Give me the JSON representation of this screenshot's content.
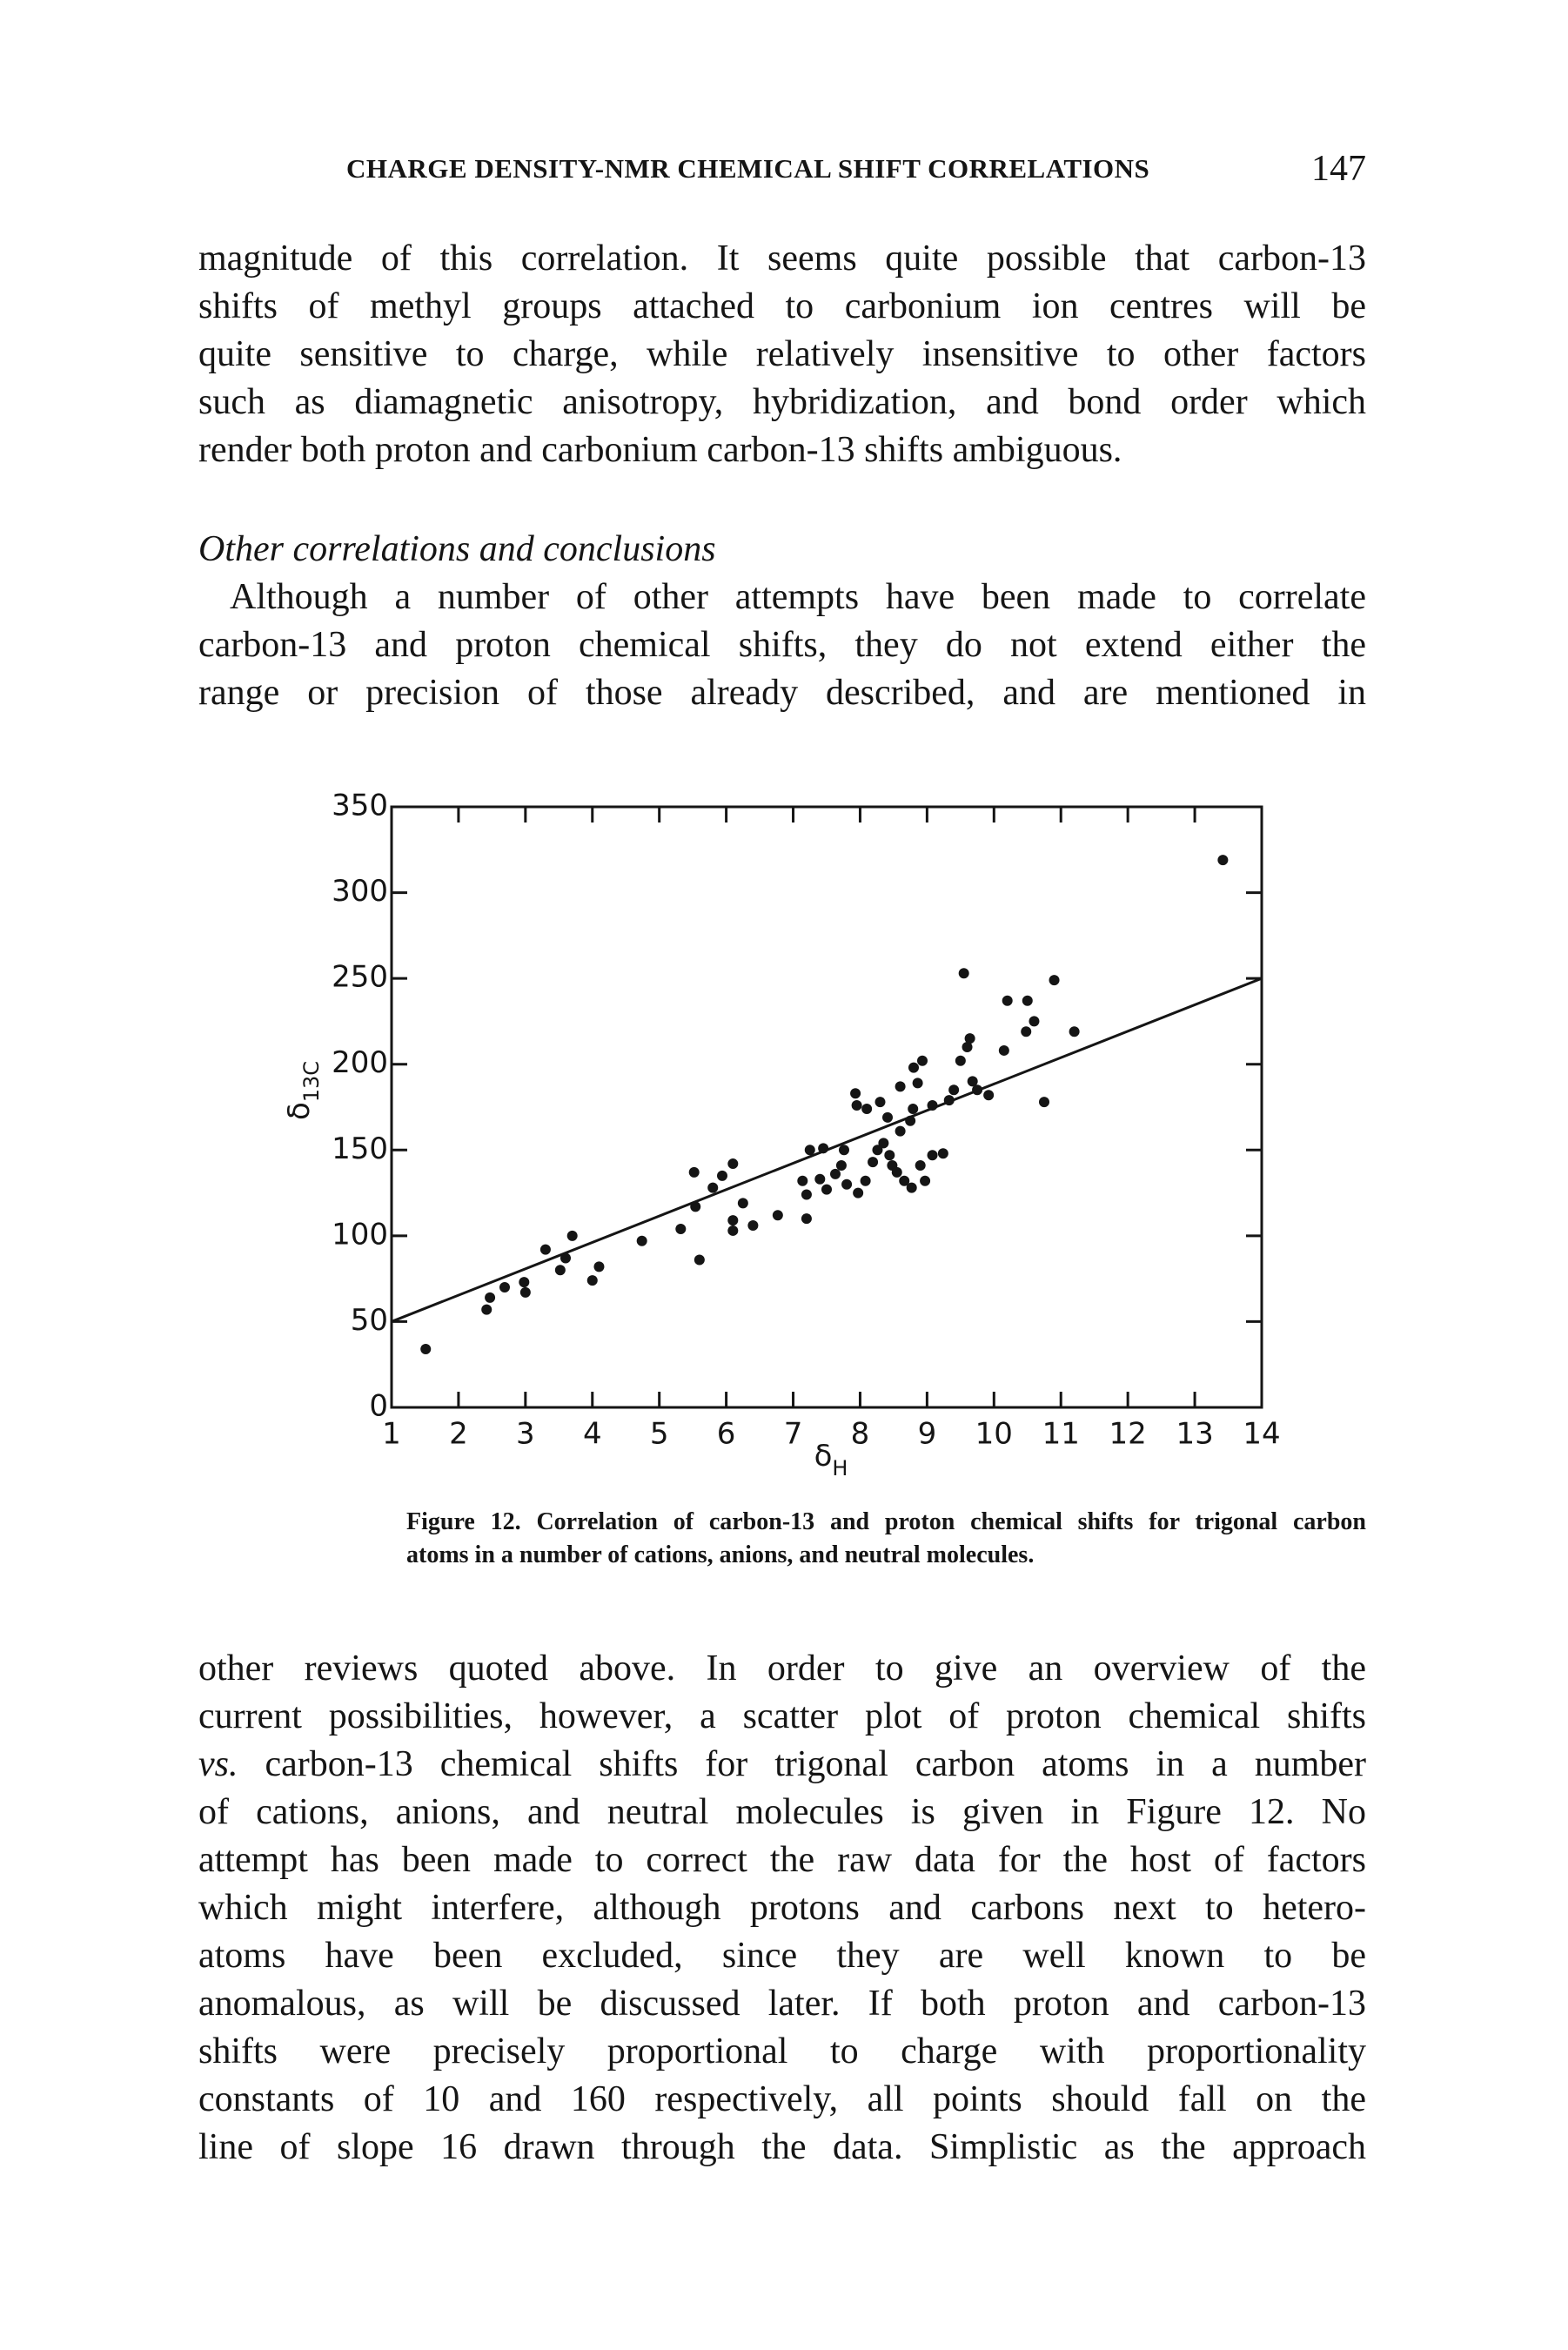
{
  "header": {
    "title": "CHARGE DENSITY-NMR CHEMICAL SHIFT CORRELATIONS",
    "page_number": 147
  },
  "paragraphs": [
    {
      "lines": [
        "magnitude of this correlation. It seems quite possible that carbon-13",
        "shifts of methyl groups attached to carbonium ion centres will be",
        "quite sensitive to charge, while relatively insensitive to other factors",
        "such as diamagnetic anisotropy, hybridization, and bond order which",
        "render both proton and carbonium carbon-13 shifts ambiguous."
      ]
    },
    {
      "heading": "Other correlations and conclusions",
      "lines": [
        "Although a number of other attempts have been made to correlate",
        "carbon-13 and proton chemical shifts, they do not extend either the",
        "range or precision of those already described, and are mentioned in"
      ]
    },
    {
      "lines": [
        "other reviews quoted above. In order to give an overview of the",
        "current possibilities, however, a scatter plot of proton chemical shifts",
        {
          "italic": "vs.",
          "text": "carbon-13 chemical shifts for trigonal carbon atoms in a number"
        },
        "of cations, anions, and neutral molecules is given in Figure 12. No",
        "attempt has been made to correct the raw data for the host of factors",
        "which might interfere, although protons and carbons next to hetero-",
        "atoms have been excluded, since they are well known to be",
        "anomalous, as will be discussed later. If both proton and carbon-13",
        "shifts were precisely proportional to charge with proportionality",
        "constants of 10 and 160 respectively, all points should fall on the",
        "line of slope 16 drawn through the data. Simplistic as the approach"
      ]
    }
  ],
  "chart_data": {
    "type": "scatter",
    "xlabel": {
      "symbol": "δ",
      "sub": "H"
    },
    "ylabel": {
      "symbol": "δ",
      "sub": "13C"
    },
    "xlim": [
      1,
      14
    ],
    "xticks": [
      1,
      2,
      3,
      4,
      5,
      6,
      7,
      8,
      9,
      10,
      11,
      12,
      13,
      14
    ],
    "ylim": [
      0,
      350
    ],
    "yticks": [
      0,
      50,
      100,
      150,
      200,
      250,
      300,
      350
    ],
    "grid": false,
    "color": "#151515",
    "x": [
      1.51,
      2.42,
      2.47,
      2.69,
      2.98,
      3.0,
      3.3,
      3.52,
      3.6,
      3.7,
      4.0,
      4.1,
      4.74,
      5.32,
      5.6,
      5.54,
      5.52,
      5.8,
      5.94,
      6.1,
      6.1,
      6.25,
      6.1,
      6.4,
      6.77,
      7.2,
      7.2,
      7.25,
      7.45,
      7.14,
      7.4,
      7.5,
      7.63,
      7.72,
      7.76,
      7.8,
      7.97,
      8.08,
      8.19,
      8.26,
      8.35,
      8.44,
      8.48,
      8.55,
      8.66,
      8.77,
      8.9,
      8.97,
      9.08,
      9.24,
      8.6,
      8.75,
      7.95,
      7.93,
      8.1,
      8.3,
      8.41,
      8.79,
      8.86,
      8.93,
      8.8,
      9.08,
      9.33,
      9.4,
      9.5,
      9.6,
      9.64,
      9.68,
      9.75,
      9.92,
      10.15,
      10.2,
      10.5,
      10.48,
      10.6,
      10.9,
      10.75,
      11.2,
      9.55,
      13.42,
      8.6
    ],
    "values": [
      34,
      57,
      64,
      70,
      73,
      67,
      92,
      80,
      87,
      100,
      74,
      82,
      97,
      104,
      86,
      117,
      137,
      128,
      135,
      142,
      109,
      119,
      103,
      106,
      112,
      110,
      124,
      150,
      151,
      132,
      133,
      127,
      136,
      141,
      150,
      130,
      125,
      132,
      143,
      150,
      154,
      147,
      141,
      137,
      132,
      128,
      141,
      132,
      147,
      148,
      161,
      167,
      176,
      183,
      174,
      178,
      169,
      174,
      189,
      202,
      198,
      176,
      179,
      185,
      202,
      210,
      215,
      190,
      185,
      182,
      208,
      237,
      237,
      219,
      225,
      249,
      178,
      219,
      253,
      319,
      187
    ],
    "fit_line": {
      "x": [
        1,
        14
      ],
      "values": [
        50,
        250
      ]
    }
  },
  "caption": {
    "label": "Figure 12.",
    "lines": [
      "Correlation of carbon-13 and proton chemical shifts for trigonal carbon",
      "atoms in a number of cations, anions, and neutral molecules."
    ]
  }
}
